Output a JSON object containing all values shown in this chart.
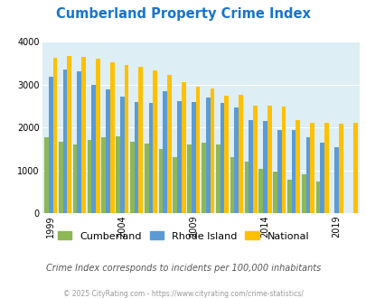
{
  "title": "Cumberland Property Crime Index",
  "title_color": "#1874CD",
  "subtitle": "Crime Index corresponds to incidents per 100,000 inhabitants",
  "footer": "© 2025 CityRating.com - https://www.cityrating.com/crime-statistics/",
  "years": [
    1999,
    2000,
    2001,
    2002,
    2003,
    2004,
    2005,
    2006,
    2007,
    2008,
    2009,
    2010,
    2011,
    2012,
    2013,
    2014,
    2015,
    2016,
    2017,
    2018,
    2019,
    2020
  ],
  "cumberland": [
    1780,
    1670,
    1600,
    1700,
    1760,
    1800,
    1660,
    1620,
    1490,
    1300,
    1600,
    1650,
    1600,
    1300,
    1190,
    1030,
    970,
    780,
    910,
    730,
    0,
    0
  ],
  "rhode_island": [
    3190,
    3360,
    3300,
    2990,
    2880,
    2720,
    2600,
    2580,
    2850,
    2620,
    2590,
    2690,
    2580,
    2470,
    2170,
    2140,
    1940,
    1930,
    1760,
    1650,
    1540,
    0
  ],
  "national": [
    3620,
    3670,
    3650,
    3610,
    3510,
    3450,
    3420,
    3340,
    3220,
    3050,
    2960,
    2900,
    2740,
    2760,
    2510,
    2500,
    2490,
    2180,
    2100,
    2100,
    2080,
    2100
  ],
  "cumberland_color": "#8db855",
  "rhode_island_color": "#5b9bd5",
  "national_color": "#ffc000",
  "background_color": "#ddeef4",
  "ylim": [
    0,
    4000
  ],
  "yticks": [
    0,
    1000,
    2000,
    3000,
    4000
  ],
  "xlabel_years": [
    1999,
    2004,
    2009,
    2014,
    2019
  ],
  "legend_labels": [
    "Cumberland",
    "Rhode Island",
    "National"
  ],
  "subtitle_color": "#555555",
  "footer_color": "#999999"
}
